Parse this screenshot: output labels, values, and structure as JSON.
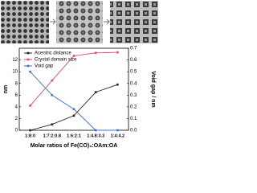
{
  "chart_data": {
    "type": "line",
    "xlabel": "Molar ratios of Fe(CO)₅:OAm:OA",
    "ylabel": "nm",
    "y2label": "Void gap / nm",
    "categories": [
      "1:8:0",
      "1:7:2:0.8",
      "1:6:2:1",
      "1:4.8:3.3",
      "1:4:4.2"
    ],
    "series": [
      {
        "name": "Acentric distance",
        "color": "#222222",
        "values": [
          0,
          1,
          2.5,
          6.5,
          7.8
        ]
      },
      {
        "name": "Crystal domain size",
        "color": "#e0457b",
        "values": [
          4.2,
          8.5,
          12.7,
          13.2,
          13.3
        ]
      },
      {
        "name": "Void gap",
        "color": "#3a6fd1",
        "axis": "y2",
        "values": [
          0.5,
          0.3,
          0.18,
          0,
          0
        ]
      }
    ],
    "ylim": [
      0,
      14
    ],
    "yticks": [
      0,
      2,
      4,
      6,
      8,
      10,
      12
    ],
    "y2lim": [
      0,
      0.7
    ],
    "y2ticks": [
      {
        "value": 0,
        "label": "0.0"
      },
      0.1,
      0.2,
      0.3,
      0.4,
      0.5,
      0.6,
      0.7
    ],
    "legend": "upper-left"
  }
}
